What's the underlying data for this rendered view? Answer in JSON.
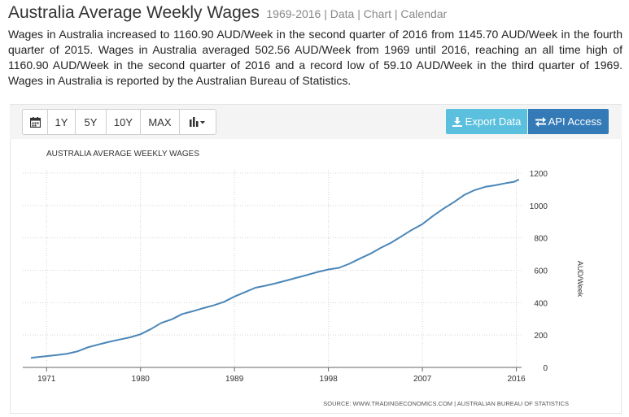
{
  "header": {
    "title": "Australia Average Weekly Wages",
    "links": "1969-2016 | Data | Chart | Calendar",
    "description": "Wages in Australia increased to 1160.90 AUD/Week in the second quarter of 2016 from 1145.70 AUD/Week in the fourth quarter of 2015. Wages in Australia averaged 502.56 AUD/Week from 1969 until 2016, reaching an all time high of 1160.90 AUD/Week in the second quarter of 2016 and a record low of 59.10 AUD/Week in the third quarter of 1969. Wages in Australia is reported by the Australian Bureau of Statistics."
  },
  "toolbar": {
    "range_buttons": [
      "1Y",
      "5Y",
      "10Y",
      "MAX"
    ],
    "calendar_icon": "calendar-icon",
    "chart_type_icon": "bar-chart-icon",
    "export_label": "Export Data",
    "export_icon": "download-icon",
    "api_label": "API Access",
    "api_icon": "exchange-icon",
    "export_color": "#5bc0de",
    "api_color": "#337ab7"
  },
  "chart_data": {
    "type": "line",
    "title": "AUSTRALIA AVERAGE WEEKLY WAGES",
    "ylabel": "AUD/Week",
    "xlabel": "",
    "source": "SOURCE: WWW.TRADINGECONOMICS.COM | AUSTRALIAN BUREAU OF STATISTICS",
    "ylim": [
      0,
      1200
    ],
    "xlim": [
      1969.5,
      2016.5
    ],
    "y_ticks": [
      0,
      200,
      400,
      600,
      800,
      1000,
      1200
    ],
    "x_ticks": [
      1971,
      1980,
      1989,
      1998,
      2007,
      2016
    ],
    "x_tick_labels": [
      "1971",
      "1980",
      "1989",
      "1998",
      "2007",
      "2016"
    ],
    "grid": true,
    "line_color": "#4a86b8",
    "series": [
      {
        "x": [
          1969.5,
          1970,
          1971,
          1972,
          1973,
          1974,
          1975,
          1976,
          1977,
          1978,
          1979,
          1980,
          1981,
          1982,
          1983,
          1984,
          1985,
          1986,
          1987,
          1988,
          1989,
          1990,
          1991,
          1992,
          1993,
          1994,
          1995,
          1996,
          1997,
          1998,
          1999,
          2000,
          2001,
          2002,
          2003,
          2004,
          2005,
          2006,
          2007,
          2008,
          2009,
          2010,
          2011,
          2012,
          2013,
          2014,
          2015,
          2015.75,
          2016.25
        ],
        "values": [
          59.1,
          63,
          70,
          77,
          85,
          100,
          125,
          142,
          158,
          172,
          186,
          205,
          237,
          275,
          297,
          330,
          347,
          366,
          383,
          405,
          438,
          465,
          492,
          505,
          520,
          537,
          555,
          572,
          590,
          605,
          615,
          640,
          672,
          702,
          738,
          770,
          810,
          850,
          885,
          935,
          980,
          1020,
          1065,
          1095,
          1115,
          1125,
          1138,
          1145.7,
          1160.9
        ]
      }
    ]
  }
}
